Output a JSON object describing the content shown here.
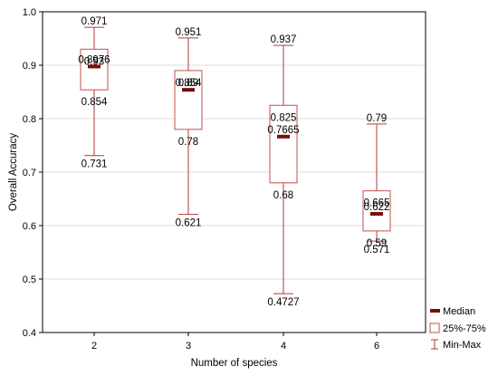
{
  "chart_data": {
    "type": "box",
    "xlabel": "Number of species",
    "ylabel": "Overall Accuracy",
    "ylim": [
      0.4,
      1.0
    ],
    "yticks": [
      "0.4",
      "0.5",
      "0.6",
      "0.7",
      "0.8",
      "0.9",
      "1.0"
    ],
    "grid": "horizontal",
    "legend_position": "bottom-right",
    "colors": {
      "box": "#c0504d",
      "median": "#7a0c0c",
      "whisker": "#b03a3a",
      "grid": "#dcdcdc"
    },
    "categories": [
      "2",
      "3",
      "4",
      "6"
    ],
    "boxes": [
      {
        "category": "2",
        "min": 0.731,
        "q1": 0.854,
        "median": 0.8976,
        "q3": 0.93,
        "max": 0.971,
        "labels": {
          "min": "0.731",
          "q1": "0.854",
          "median": "0.8976",
          "q3": "0.93",
          "max": "0.971"
        }
      },
      {
        "category": "3",
        "min": 0.621,
        "q1": 0.78,
        "median": 0.854,
        "q3": 0.89,
        "max": 0.951,
        "labels": {
          "min": "0.621",
          "q1": "0.78",
          "median": "0.854",
          "q3": "0.89",
          "max": "0.951"
        }
      },
      {
        "category": "4",
        "min": 0.4727,
        "q1": 0.68,
        "median": 0.7665,
        "q3": 0.825,
        "max": 0.937,
        "labels": {
          "min": "0.4727",
          "q1": "0.68",
          "median": "0.7665",
          "q3": "0.825",
          "max": "0.937"
        }
      },
      {
        "category": "6",
        "min": 0.571,
        "q1": 0.59,
        "median": 0.622,
        "q3": 0.665,
        "max": 0.79,
        "labels": {
          "min": "0.571",
          "q1": "0.59",
          "median": "0.622",
          "q3": "0.665",
          "max": "0.79"
        }
      }
    ],
    "legend": [
      {
        "key": "median",
        "label": "Median"
      },
      {
        "key": "box",
        "label": "25%-75%"
      },
      {
        "key": "whisker",
        "label": "Min-Max"
      }
    ]
  }
}
